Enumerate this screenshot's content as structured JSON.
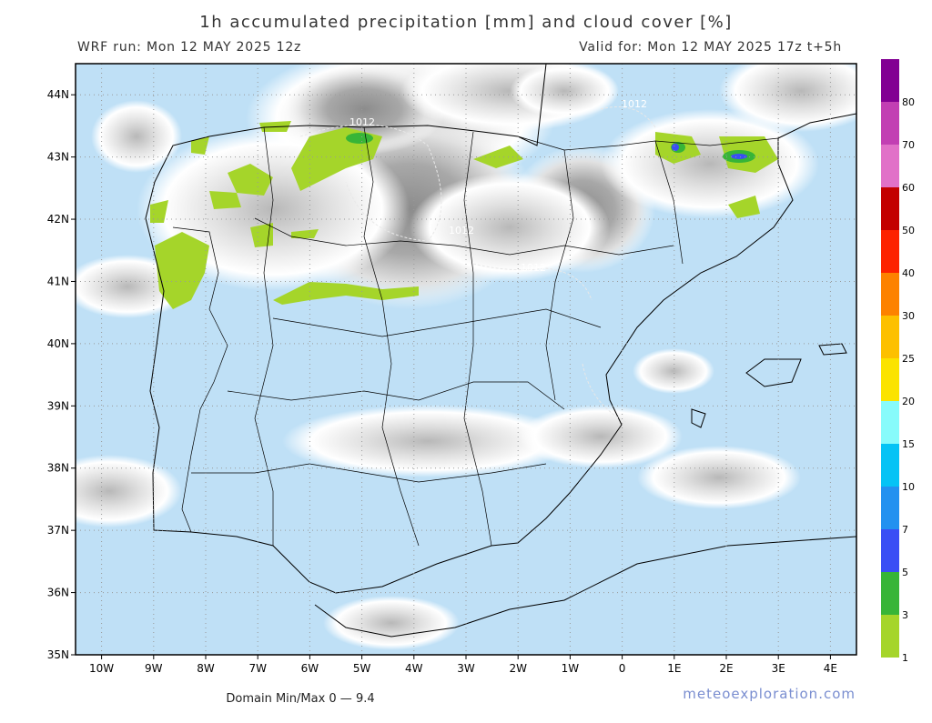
{
  "chart_data": {
    "type": "map",
    "title": "1h accumulated precipitation [mm] and cloud cover [%]",
    "run_label": "WRF run: Mon 12 MAY 2025 12z",
    "valid_label": "Valid for: Mon 12 MAY 2025 17z  t+5h",
    "footer": "Domain Min/Max 0 — 9.4",
    "source": "meteoexploration.com",
    "contour_labels": [
      "1012",
      "1012",
      "1012",
      "1012"
    ],
    "xlim": [
      -10.5,
      4.5
    ],
    "ylim": [
      35,
      44.5
    ],
    "xticks": [
      {
        "value": -10,
        "label": "10W"
      },
      {
        "value": -9,
        "label": "9W"
      },
      {
        "value": -8,
        "label": "8W"
      },
      {
        "value": -7,
        "label": "7W"
      },
      {
        "value": -6,
        "label": "6W"
      },
      {
        "value": -5,
        "label": "5W"
      },
      {
        "value": -4,
        "label": "4W"
      },
      {
        "value": -3,
        "label": "3W"
      },
      {
        "value": -2,
        "label": "2W"
      },
      {
        "value": -1,
        "label": "1W"
      },
      0,
      {
        "value": 1,
        "label": "1E"
      },
      {
        "value": 2,
        "label": "2E"
      },
      {
        "value": 3,
        "label": "3E"
      },
      {
        "value": 4,
        "label": "4E"
      }
    ],
    "yticks": [
      {
        "value": 35,
        "label": "35N"
      },
      {
        "value": 36,
        "label": "36N"
      },
      {
        "value": 37,
        "label": "37N"
      },
      {
        "value": 38,
        "label": "38N"
      },
      {
        "value": 39,
        "label": "39N"
      },
      {
        "value": 40,
        "label": "40N"
      },
      {
        "value": 41,
        "label": "41N"
      },
      {
        "value": 42,
        "label": "42N"
      },
      {
        "value": 43,
        "label": "43N"
      },
      {
        "value": 44,
        "label": "44N"
      }
    ],
    "grid": true,
    "colorbar": {
      "levels": [
        1,
        3,
        5,
        7,
        10,
        15,
        20,
        25,
        30,
        40,
        50,
        60,
        70,
        80
      ],
      "colors": [
        "#a5d52a",
        "#37b537",
        "#3a4ef5",
        "#2391f0",
        "#05c3f5",
        "#87fbfb",
        "#fbe300",
        "#fdc000",
        "#fd8200",
        "#fd2200",
        "#c30000",
        "#e171c8",
        "#c23fb3",
        "#820093"
      ]
    }
  }
}
